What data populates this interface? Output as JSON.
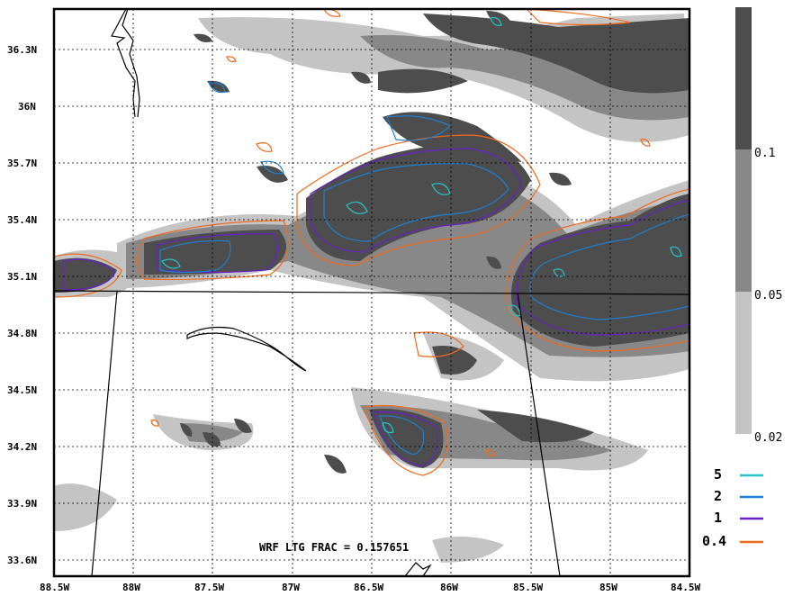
{
  "map": {
    "annotation": "WRF LTG FRAC = 0.157651",
    "lat_labels": [
      "36.3N",
      "36N",
      "35.7N",
      "35.4N",
      "35.1N",
      "34.8N",
      "34.5N",
      "34.2N",
      "33.9N",
      "33.6N"
    ],
    "lon_labels": [
      "88.5W",
      "88W",
      "87.5W",
      "87W",
      "86.5W",
      "86W",
      "85.5W",
      "85W",
      "84.5W"
    ],
    "shading_colors": {
      "above_0.1": "#4d4d4d",
      "0.05_to_0.1": "#888888",
      "0.02_to_0.05": "#c4c4c4"
    }
  },
  "colorbar": {
    "labels": [
      "0.1",
      "0.05",
      "0.02"
    ],
    "colors": [
      "#4d4d4d",
      "#888888",
      "#c4c4c4"
    ]
  },
  "contour_legend": {
    "items": [
      {
        "label": "5",
        "color": "#22c4c8"
      },
      {
        "label": "2",
        "color": "#1f7fd0"
      },
      {
        "label": "1",
        "color": "#6a20c8"
      },
      {
        "label": "0.4",
        "color": "#f06a1c"
      }
    ]
  }
}
